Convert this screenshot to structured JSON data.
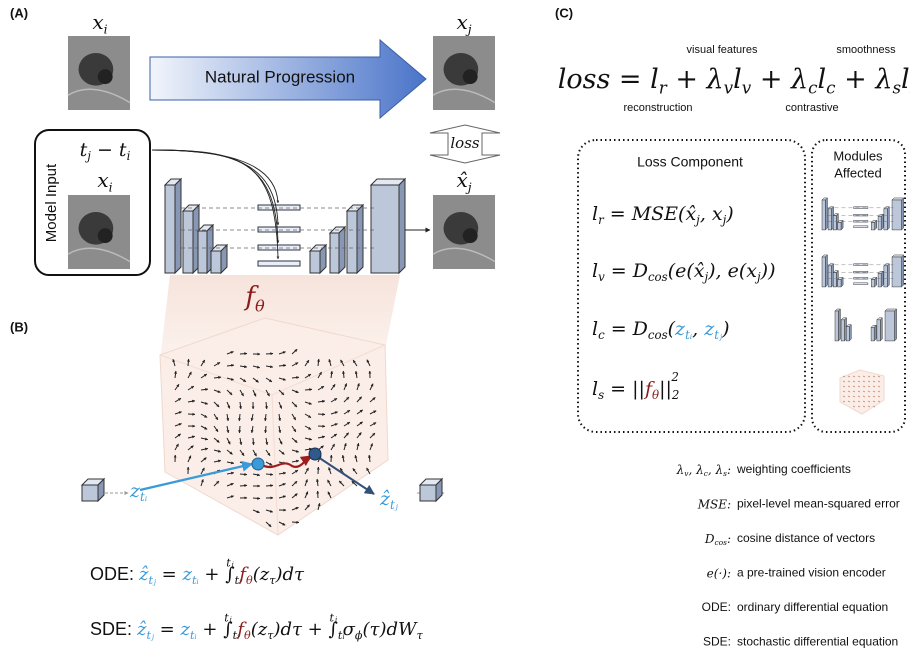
{
  "panelA": {
    "label": "(A)",
    "input_top": [
      {
        "t": "x",
        "sub": "i"
      }
    ],
    "target": [
      {
        "t": "x",
        "sub": "j"
      }
    ],
    "arrow": "Natural Progression",
    "loss": [
      {
        "t": "loss"
      }
    ],
    "prediction": [
      {
        "t": "x̂",
        "sub": "j"
      }
    ],
    "model_input": "Model Input",
    "time": [
      {
        "t": "t",
        "sub": "j"
      },
      {
        "t": " − t",
        "sub": "i"
      }
    ],
    "input_box": [
      {
        "t": "x",
        "sub": "i"
      }
    ],
    "f": [
      {
        "t": "f",
        "sub": "θ",
        "color": "#8b1c1c"
      }
    ]
  },
  "panelB": {
    "label": "(B)",
    "z_start": [
      {
        "t": "z",
        "sub": "tᵢ",
        "color": "#3b9ad8"
      }
    ],
    "z_end": [
      {
        "t": "ẑ",
        "sub": "tⱼ",
        "color": "#3b9ad8"
      }
    ],
    "ode": [
      {
        "t": "ODE:  ",
        "style": "normal"
      },
      {
        "t": "ẑ",
        "sub": "tⱼ",
        "color": "#3b9ad8"
      },
      {
        "t": " = "
      },
      {
        "t": "z",
        "sub": "tᵢ",
        "color": "#3b9ad8"
      },
      {
        "t": " + ∫",
        "sub": "tᵢ",
        "sup": "tⱼ"
      },
      {
        "t": " f",
        "sub": "θ",
        "color": "#8b1c1c"
      },
      {
        "t": "(z",
        "sub": "τ"
      },
      {
        "t": ")dτ"
      }
    ],
    "sde": [
      {
        "t": "SDE:  ",
        "style": "normal"
      },
      {
        "t": "ẑ",
        "sub": "tⱼ",
        "color": "#3b9ad8"
      },
      {
        "t": " = "
      },
      {
        "t": "z",
        "sub": "tᵢ",
        "color": "#3b9ad8"
      },
      {
        "t": " + ∫",
        "sub": "tᵢ",
        "sup": "tⱼ"
      },
      {
        "t": " f",
        "sub": "θ",
        "color": "#8b1c1c"
      },
      {
        "t": "(z",
        "sub": "τ"
      },
      {
        "t": ")dτ + ∫",
        "sub": "tᵢ",
        "sup": "tⱼ"
      },
      {
        "t": " σ",
        "sub": "ϕ"
      },
      {
        "t": "(τ)dW",
        "sub": "τ"
      }
    ]
  },
  "panelC": {
    "label": "(C)",
    "loss": [
      {
        "t": "loss = l",
        "sub": "r"
      },
      {
        "t": " + λ",
        "sub": "v"
      },
      {
        "t": "l",
        "sub": "v"
      },
      {
        "t": " + λ",
        "sub": "c"
      },
      {
        "t": "l",
        "sub": "c"
      },
      {
        "t": " + λ",
        "sub": "s"
      },
      {
        "t": "l",
        "sub": "s"
      }
    ],
    "notes": {
      "visual": "visual features",
      "smooth": "smoothness",
      "recon": "reconstruction",
      "contrast": "contrastive"
    },
    "component_header": "Loss Component",
    "modules_header": [
      "Modules",
      "Affected"
    ],
    "components": [
      [
        {
          "t": "l",
          "sub": "r"
        },
        {
          "t": " = MSE(x̂",
          "sub": "j"
        },
        {
          "t": ", x",
          "sub": "j"
        },
        {
          "t": ")"
        }
      ],
      [
        {
          "t": "l",
          "sub": "v"
        },
        {
          "t": " = D",
          "sub": "cos"
        },
        {
          "t": "(e(x̂",
          "sub": "j"
        },
        {
          "t": "), e(x",
          "sub": "j"
        },
        {
          "t": "))"
        }
      ],
      [
        {
          "t": "l",
          "sub": "c"
        },
        {
          "t": " = D",
          "sub": "cos"
        },
        {
          "t": "("
        },
        {
          "t": "z",
          "sub": "tᵢ",
          "color": "#3b9ad8"
        },
        {
          "t": ", "
        },
        {
          "t": "z",
          "sub": "tⱼ",
          "color": "#3b9ad8"
        },
        {
          "t": ")"
        }
      ],
      [
        {
          "t": "l",
          "sub": "s"
        },
        {
          "t": " = ||"
        },
        {
          "t": "f",
          "sub": "θ",
          "color": "#8b1c1c"
        },
        {
          "t": "||",
          "sub": "2",
          "sup": "2"
        }
      ]
    ],
    "legend": [
      {
        "sym": [
          {
            "t": "λ",
            "sub": "v"
          },
          {
            "t": ", λ",
            "sub": "c"
          },
          {
            "t": ", λ",
            "sub": "s"
          },
          {
            "t": ":"
          }
        ],
        "desc": "weighting coefficients"
      },
      {
        "sym": [
          {
            "t": "MSE:"
          }
        ],
        "desc": "pixel-level mean-squared error"
      },
      {
        "sym": [
          {
            "t": "D",
            "sub": "cos"
          },
          {
            "t": ":"
          }
        ],
        "desc": "cosine distance of vectors"
      },
      {
        "sym": [
          {
            "t": "e(·):"
          }
        ],
        "desc": "a pre-trained vision encoder"
      },
      {
        "sym": [
          {
            "t": "ODE:",
            "style": "normal"
          }
        ],
        "desc": "ordinary differential equation"
      },
      {
        "sym": [
          {
            "t": "SDE:",
            "style": "normal"
          }
        ],
        "desc": "stochastic differential equation"
      }
    ]
  }
}
